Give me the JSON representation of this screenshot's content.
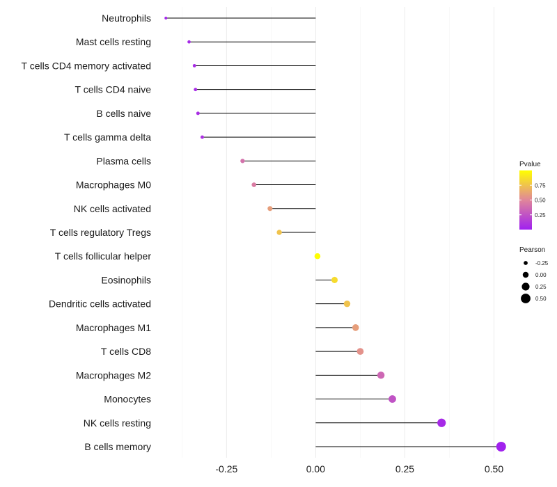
{
  "chart_data": {
    "type": "lollipop",
    "title": "",
    "xlabel": "",
    "ylabel": "",
    "xlim": [
      -0.44,
      0.54
    ],
    "x_ticks": [
      -0.25,
      0.0,
      0.25,
      0.5
    ],
    "x_tick_labels": [
      "-0.25",
      "0.00",
      "0.25",
      "0.50"
    ],
    "grid": true,
    "categories": [
      "Neutrophils",
      "Mast cells resting",
      "T cells CD4 memory activated",
      "T cells CD4 naive",
      "B cells naive",
      "T cells gamma delta",
      "Plasma cells",
      "Macrophages M0",
      "NK cells activated",
      "T cells regulatory  Tregs ",
      "T cells follicular helper",
      "Eosinophils",
      "Dendritic cells activated",
      "Macrophages M1",
      "T cells CD8",
      "Macrophages M2",
      "Monocytes",
      "NK cells resting",
      "B cells memory"
    ],
    "pearson": [
      -0.42,
      -0.355,
      -0.34,
      -0.337,
      -0.33,
      -0.318,
      -0.205,
      -0.173,
      -0.128,
      -0.102,
      0.005,
      0.053,
      0.088,
      0.112,
      0.125,
      0.183,
      0.215,
      0.353,
      0.52
    ],
    "pvalue": [
      0.03,
      0.05,
      0.06,
      0.06,
      0.07,
      0.09,
      0.4,
      0.45,
      0.6,
      0.75,
      0.99,
      0.85,
      0.75,
      0.6,
      0.55,
      0.35,
      0.25,
      0.05,
      0.01
    ],
    "legend": {
      "color": {
        "title": "Pvalue",
        "ticks": [
          0.25,
          0.5,
          0.75
        ],
        "tick_labels": [
          "0.25",
          "0.50",
          "0.75"
        ],
        "range": [
          0,
          1
        ],
        "low_color": "#a020f0",
        "mid_color": "#e0869a",
        "high_color": "#ffff00"
      },
      "size": {
        "title": "Pearson",
        "values": [
          -0.25,
          0.0,
          0.25,
          0.5
        ],
        "labels": [
          "-0.25",
          "0.00",
          "0.25",
          "0.50"
        ]
      },
      "placement": "right"
    }
  }
}
